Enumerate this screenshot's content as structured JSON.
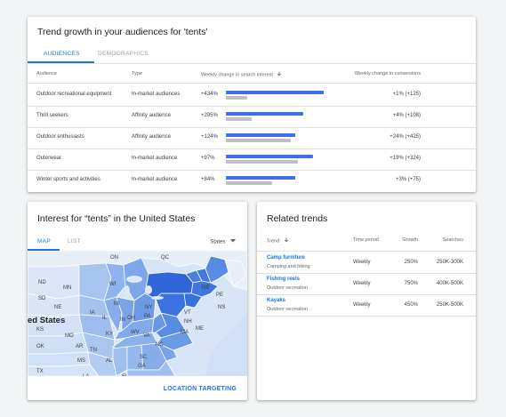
{
  "audiences_card": {
    "title": "Trend growth in your audiences for 'tents'",
    "tabs": [
      "AUDIENCES",
      "DEMOGRAPHICS"
    ],
    "columns": [
      "Audience",
      "Type",
      "Weekly change in search interest",
      "Weekly change in conversions"
    ],
    "rows": [
      {
        "audience": "Outdoor recreational equipment",
        "type": "In-market audiences",
        "search": "+434%",
        "search_level": 1.0,
        "baseline_level": 0.22,
        "conversions": "+1% (+125)"
      },
      {
        "audience": "Thrill seekers",
        "type": "Affinity audience",
        "search": "+295%",
        "search_level": 0.79,
        "baseline_level": 0.26,
        "conversions": "+4% (+108)"
      },
      {
        "audience": "Outdoor enthusiasts",
        "type": "Affinity audience",
        "search": "+124%",
        "search_level": 0.71,
        "baseline_level": 0.66,
        "conversions": "+24% (+425)"
      },
      {
        "audience": "Outerwear",
        "type": "In-market audience",
        "search": "+97%",
        "search_level": 0.89,
        "baseline_level": 0.74,
        "conversions": "+19% (+324)"
      },
      {
        "audience": "Winter sports and activities",
        "type": "In-market audience",
        "search": "+84%",
        "search_level": 0.71,
        "baseline_level": 0.47,
        "conversions": "+3% (+75)"
      }
    ]
  },
  "map_card": {
    "title": "Interest for “tents” in the United States",
    "tabs": [
      "MAP",
      "LIST"
    ],
    "dropdown": "States",
    "region_label": "ed States",
    "state_labels": [
      "ON",
      "QC",
      "ND",
      "MN",
      "SD",
      "WI",
      "MI",
      "NE",
      "IA",
      "IL",
      "IN",
      "OH",
      "PA",
      "NY",
      "VT",
      "NH",
      "ME",
      "NB",
      "PE",
      "NS",
      "MA",
      "KS",
      "MO",
      "KY",
      "WV",
      "OK",
      "AR",
      "TN",
      "VA",
      "NC",
      "SC",
      "MS",
      "AL",
      "GA",
      "TX",
      "LA",
      "FL"
    ],
    "action": "LOCATION TARGETING"
  },
  "related_card": {
    "title": "Related trends",
    "columns": [
      "Trend",
      "Time period",
      "Growth",
      "Searches"
    ],
    "rows": [
      {
        "trend": "Camp furniture",
        "category": "Camping and hiking",
        "period": "Weekly",
        "growth": "250%",
        "searches": "250K-300K"
      },
      {
        "trend": "Fishing reels",
        "category": "Outdoor recreation",
        "period": "Weekly",
        "growth": "750%",
        "searches": "400K-500K"
      },
      {
        "trend": "Kayaks",
        "category": "Outdoor recreation",
        "period": "Weekly",
        "growth": "450%",
        "searches": "250K-500K"
      }
    ]
  },
  "colors": {
    "accent": "#1a73e8",
    "bar_blue": "#3c6fe3",
    "bar_gray": "#bdc1c6"
  },
  "icons": {
    "sort": "arrow-down-icon",
    "dropdown": "caret-down-icon"
  }
}
